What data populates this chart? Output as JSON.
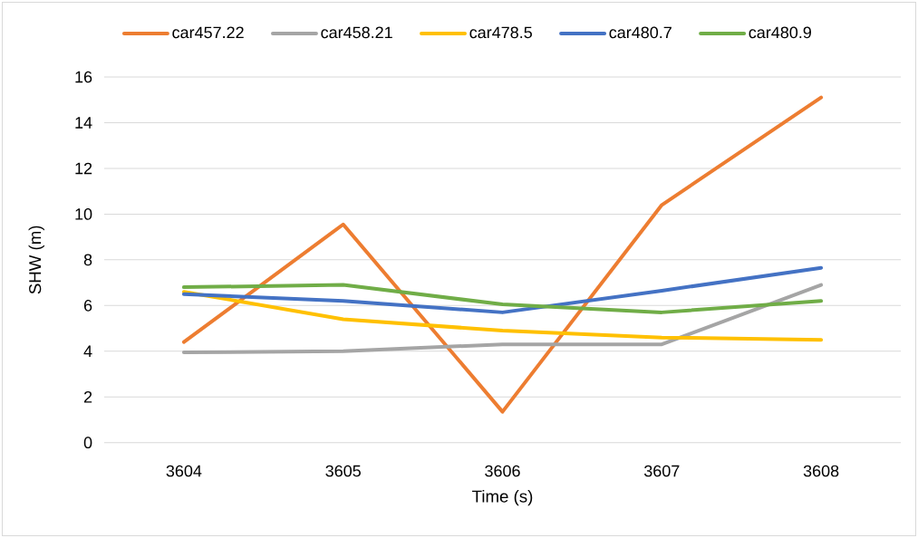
{
  "chart_data": {
    "type": "line",
    "xlabel": "Time (s)",
    "ylabel": "SHW (m)",
    "categories": [
      "3604",
      "3605",
      "3606",
      "3607",
      "3608"
    ],
    "series": [
      {
        "name": "car457.22",
        "color": "#ed7d31",
        "values": [
          4.4,
          9.55,
          1.35,
          10.4,
          15.1
        ]
      },
      {
        "name": "car458.21",
        "color": "#a5a5a5",
        "values": [
          3.95,
          4.0,
          4.3,
          4.3,
          6.9
        ]
      },
      {
        "name": "car478.5",
        "color": "#ffc000",
        "values": [
          6.6,
          5.4,
          4.9,
          4.6,
          4.5
        ]
      },
      {
        "name": "car480.7",
        "color": "#4472c4",
        "values": [
          6.5,
          6.2,
          5.7,
          6.65,
          7.65
        ]
      },
      {
        "name": "car480.9",
        "color": "#70ad47",
        "values": [
          6.8,
          6.9,
          6.05,
          5.7,
          6.2
        ]
      }
    ],
    "ylim": [
      0,
      16
    ],
    "yticks": [
      0,
      2,
      4,
      6,
      8,
      10,
      12,
      14,
      16
    ],
    "grid": "y",
    "legend": "top"
  }
}
